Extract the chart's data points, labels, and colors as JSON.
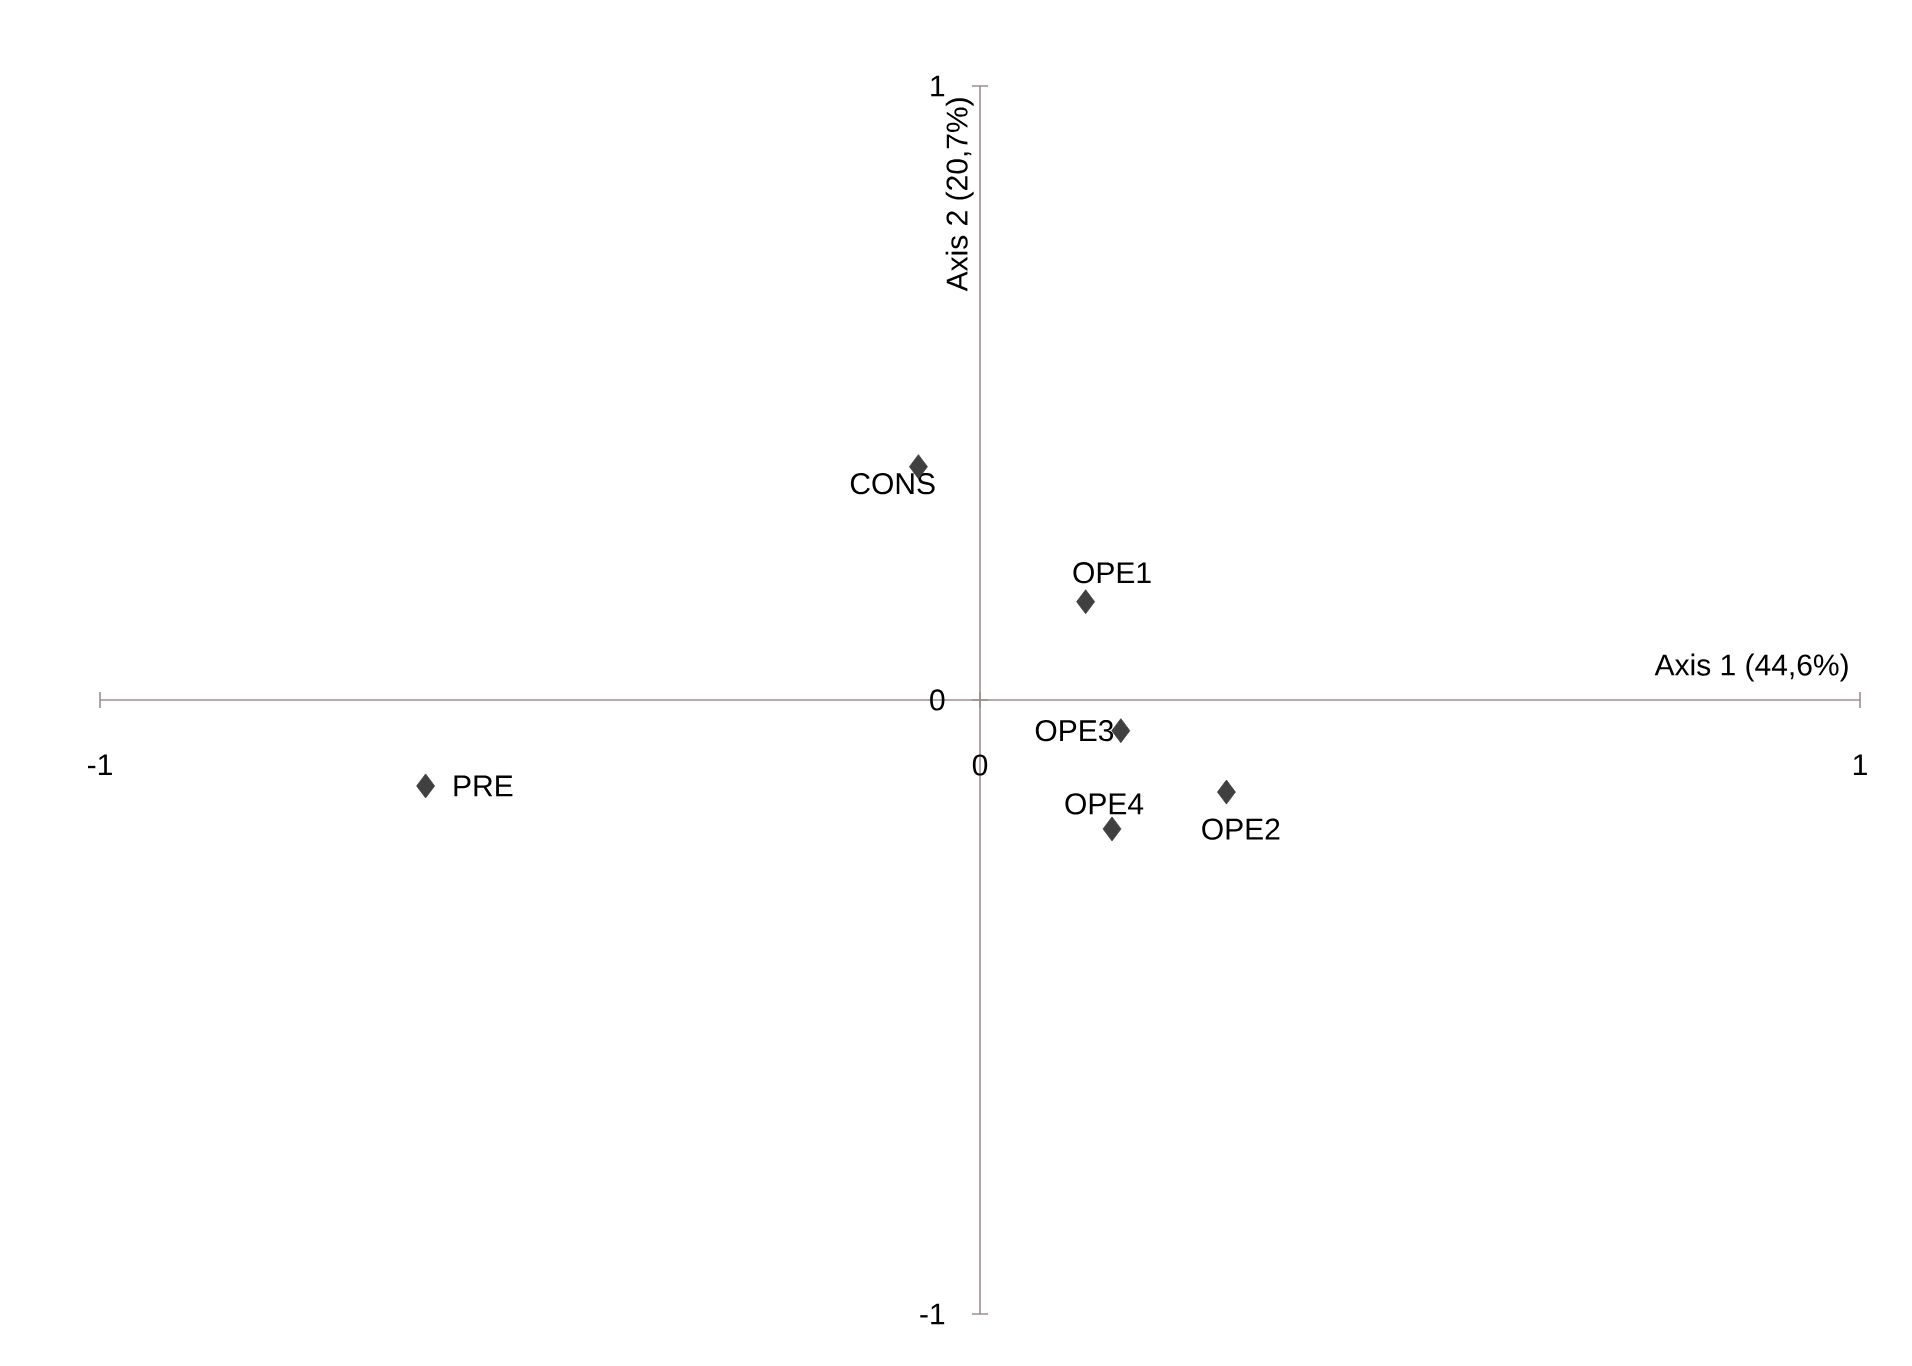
{
  "chart_data": {
    "type": "scatter",
    "xlabel": "Axis 1 (44,6%)",
    "ylabel": "Axis 2 (20,7%)",
    "x": [
      -0.07,
      0.12,
      0.16,
      0.15,
      0.28,
      -0.63
    ],
    "series": [
      {
        "color": "#404040",
        "values": [
          0.38,
          0.16,
          -0.05,
          -0.21,
          -0.15,
          -0.14
        ]
      }
    ],
    "xlim": [
      -1,
      1
    ],
    "ylim": [
      -1,
      1
    ],
    "xticks": [
      -1,
      0,
      1
    ],
    "yticks": [
      -1,
      0,
      1
    ],
    "marker": "diamond",
    "annotations": [
      {
        "text": "CONS",
        "x": -0.07,
        "y": 0.38
      },
      {
        "text": "OPE1",
        "x": 0.12,
        "y": 0.16
      },
      {
        "text": "OPE3",
        "x": 0.16,
        "y": -0.05
      },
      {
        "text": "OPE4",
        "x": 0.15,
        "y": -0.21
      },
      {
        "text": "OPE2",
        "x": 0.28,
        "y": -0.15
      },
      {
        "text": "PRE",
        "x": -0.63,
        "y": -0.14
      }
    ]
  }
}
